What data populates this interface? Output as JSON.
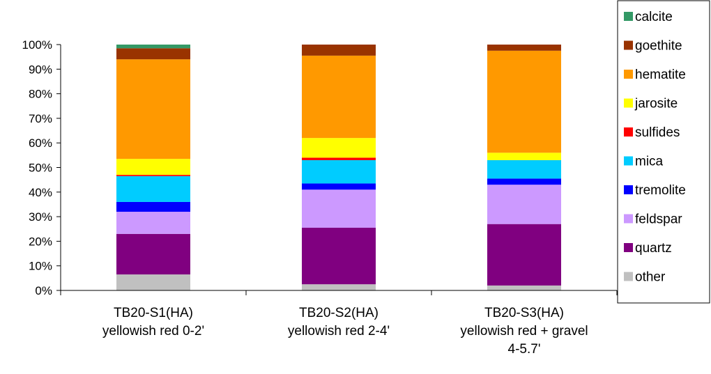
{
  "chart_data": {
    "type": "bar",
    "stacked": "percent",
    "categories": [
      [
        "TB20-S1(HA)",
        "yellowish red 0-2'"
      ],
      [
        "TB20-S2(HA)",
        "yellowish red 2-4'"
      ],
      [
        "TB20-S3(HA)",
        "yellowish red + gravel",
        "4-5.7'"
      ]
    ],
    "y_tick_labels": [
      "0%",
      "10%",
      "20%",
      "30%",
      "40%",
      "50%",
      "60%",
      "70%",
      "80%",
      "90%",
      "100%"
    ],
    "ylim": [
      0,
      100
    ],
    "grid": false,
    "legend_position": "right",
    "series": [
      {
        "name": "other",
        "color": "#c0c0c0",
        "values": [
          6.5,
          2.5,
          2.0
        ]
      },
      {
        "name": "quartz",
        "color": "#800080",
        "values": [
          16.5,
          23.0,
          25.0
        ]
      },
      {
        "name": "feldspar",
        "color": "#cc99ff",
        "values": [
          9.0,
          15.5,
          16.0
        ]
      },
      {
        "name": "tremolite",
        "color": "#0000ff",
        "values": [
          4.0,
          2.5,
          2.5
        ]
      },
      {
        "name": "mica",
        "color": "#00ccff",
        "values": [
          10.5,
          9.5,
          7.5
        ]
      },
      {
        "name": "sulfides",
        "color": "#ff0000",
        "values": [
          0.5,
          1.0,
          0.0
        ]
      },
      {
        "name": "jarosite",
        "color": "#ffff00",
        "values": [
          6.5,
          8.0,
          3.0
        ]
      },
      {
        "name": "hematite",
        "color": "#ff9900",
        "values": [
          40.5,
          33.5,
          41.5
        ]
      },
      {
        "name": "goethite",
        "color": "#993300",
        "values": [
          4.5,
          4.5,
          2.5
        ]
      },
      {
        "name": "calcite",
        "color": "#339966",
        "values": [
          1.5,
          0.0,
          0.0
        ]
      }
    ],
    "legend_order": [
      "calcite",
      "goethite",
      "hematite",
      "jarosite",
      "sulfides",
      "mica",
      "tremolite",
      "feldspar",
      "quartz",
      "other"
    ]
  }
}
